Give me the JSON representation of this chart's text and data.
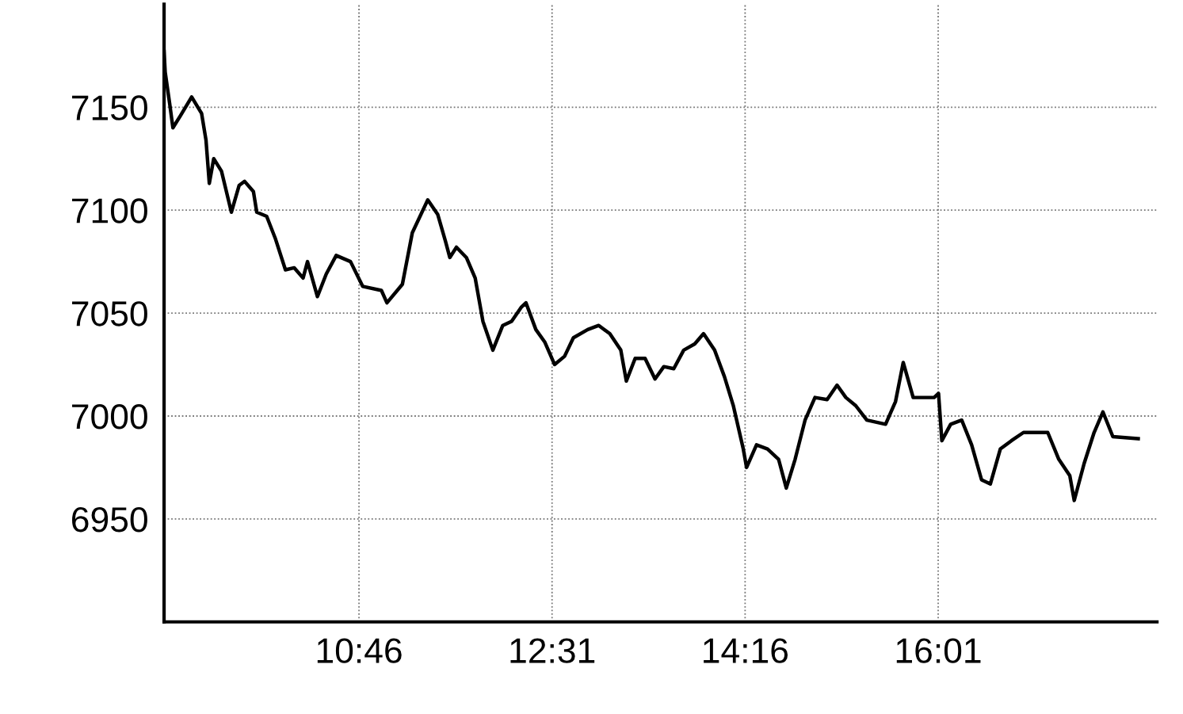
{
  "chart_data": {
    "type": "line",
    "xlim": [
      9.0,
      18.0
    ],
    "ylim": [
      6900,
      7200
    ],
    "xticks": [
      {
        "value": 10.7667,
        "label": "10:46"
      },
      {
        "value": 12.5167,
        "label": "12:31"
      },
      {
        "value": 14.2667,
        "label": "14:16"
      },
      {
        "value": 16.0167,
        "label": "16:01"
      }
    ],
    "yticks": [
      6950,
      7000,
      7050,
      7100,
      7150
    ],
    "grid": true,
    "marker": "none",
    "line_style": "solid",
    "x": [
      9.0,
      9.01,
      9.05,
      9.08,
      9.15,
      9.25,
      9.34,
      9.38,
      9.41,
      9.45,
      9.52,
      9.61,
      9.68,
      9.73,
      9.81,
      9.84,
      9.93,
      10.01,
      10.1,
      10.18,
      10.26,
      10.3,
      10.39,
      10.47,
      10.56,
      10.69,
      10.8,
      10.97,
      11.02,
      11.16,
      11.25,
      11.39,
      11.48,
      11.55,
      11.59,
      11.65,
      11.74,
      11.82,
      11.89,
      11.98,
      12.07,
      12.15,
      12.24,
      12.28,
      12.37,
      12.45,
      12.54,
      12.63,
      12.71,
      12.84,
      12.94,
      13.04,
      13.14,
      13.19,
      13.27,
      13.36,
      13.45,
      13.53,
      13.62,
      13.71,
      13.81,
      13.89,
      13.99,
      14.08,
      14.16,
      14.25,
      14.28,
      14.37,
      14.47,
      14.57,
      14.64,
      14.72,
      14.81,
      14.9,
      15.01,
      15.1,
      15.18,
      15.27,
      15.37,
      15.54,
      15.63,
      15.7,
      15.79,
      15.89,
      15.98,
      16.02,
      16.05,
      16.13,
      16.23,
      16.32,
      16.41,
      16.49,
      16.58,
      16.68,
      16.79,
      16.89,
      17.01,
      17.11,
      17.21,
      17.25,
      17.34,
      17.43,
      17.51,
      17.6,
      17.83
    ],
    "series": [
      {
        "color": "#000000",
        "values": [
          7177,
          7167,
          7152,
          7140,
          7146,
          7155,
          7147,
          7134,
          7113,
          7125,
          7119,
          7099,
          7112,
          7114,
          7109,
          7099,
          7097,
          7086,
          7071,
          7072,
          7067,
          7075,
          7058,
          7069,
          7078,
          7075,
          7063,
          7061,
          7055,
          7064,
          7089,
          7105,
          7098,
          7085,
          7077,
          7082,
          7077,
          7067,
          7046,
          7032,
          7044,
          7046,
          7053,
          7055,
          7042,
          7036,
          7025,
          7029,
          7038,
          7042,
          7044,
          7040,
          7032,
          7017,
          7028,
          7028,
          7018,
          7024,
          7023,
          7032,
          7035,
          7040,
          7032,
          7019,
          7005,
          6984,
          6975,
          6986,
          6984,
          6979,
          6965,
          6979,
          6998,
          7009,
          7008,
          7015,
          7009,
          7005,
          6998,
          6996,
          7007,
          7026,
          7009,
          7009,
          7009,
          7011,
          6988,
          6996,
          6998,
          6986,
          6969,
          6967,
          6984,
          6988,
          6992,
          6992,
          6992,
          6979,
          6971,
          6959,
          6977,
          6992,
          7002,
          6990,
          6989
        ]
      }
    ]
  }
}
